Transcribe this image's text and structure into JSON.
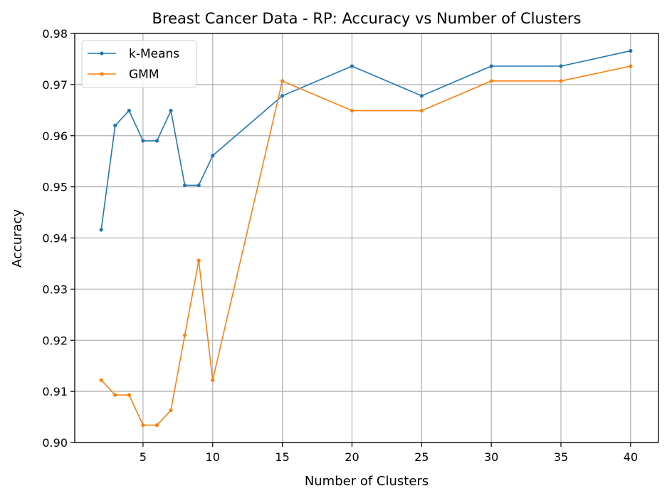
{
  "chart_data": {
    "type": "line",
    "title": "Breast Cancer Data - RP: Accuracy vs Number of Clusters",
    "xlabel": "Number of Clusters",
    "ylabel": "Accuracy",
    "xlim": [
      0.1,
      42
    ],
    "ylim": [
      0.9,
      0.98
    ],
    "xticks": [
      5,
      10,
      15,
      20,
      25,
      30,
      35,
      40
    ],
    "xtick_labels": [
      "5",
      "10",
      "15",
      "20",
      "25",
      "30",
      "35",
      "40"
    ],
    "yticks": [
      0.9,
      0.91,
      0.92,
      0.93,
      0.94,
      0.95,
      0.96,
      0.97,
      0.98
    ],
    "ytick_labels": [
      "0.90",
      "0.91",
      "0.92",
      "0.93",
      "0.94",
      "0.95",
      "0.96",
      "0.97",
      "0.98"
    ],
    "grid": true,
    "legend_position": "top-left",
    "x": [
      2,
      3,
      4,
      5,
      6,
      7,
      8,
      9,
      10,
      15,
      20,
      25,
      30,
      35,
      40
    ],
    "series": [
      {
        "name": "k-Means",
        "color": "#1f77b4",
        "values": [
          0.9416,
          0.962,
          0.9649,
          0.959,
          0.959,
          0.9649,
          0.9503,
          0.9503,
          0.9561,
          0.9678,
          0.9736,
          0.9678,
          0.9736,
          0.9736,
          0.9766
        ]
      },
      {
        "name": "GMM",
        "color": "#ff7f0e",
        "values": [
          0.9122,
          0.9093,
          0.9093,
          0.9034,
          0.9034,
          0.9063,
          0.921,
          0.9356,
          0.9122,
          0.9707,
          0.9649,
          0.9649,
          0.9707,
          0.9707,
          0.9736
        ]
      }
    ]
  }
}
